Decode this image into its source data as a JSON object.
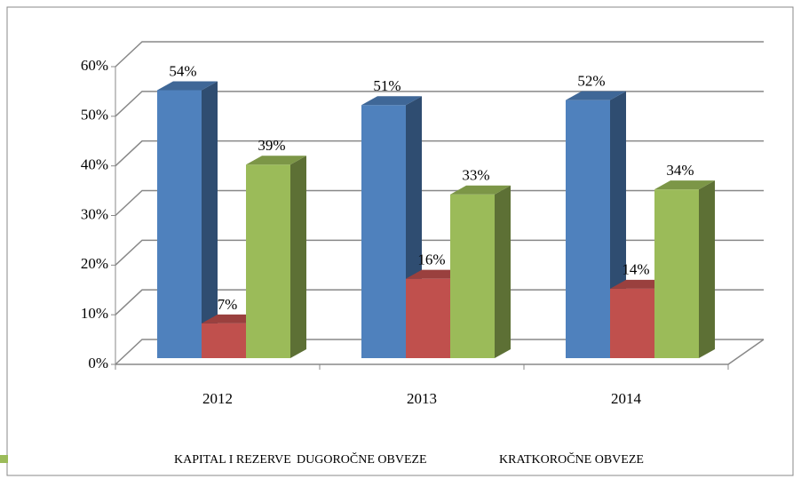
{
  "chart_data": {
    "type": "bar3d",
    "categories": [
      "2012",
      "2013",
      "2014"
    ],
    "series": [
      {
        "name": "KAPITAL I REZERVE",
        "color": "#4f81bd",
        "values": [
          54,
          51,
          52
        ],
        "value_labels": [
          "54%",
          "51%",
          "52%"
        ]
      },
      {
        "name": "DUGOROČNE OBVEZE",
        "color": "#c0504d",
        "values": [
          7,
          16,
          14
        ],
        "value_labels": [
          "7%",
          "16%",
          "14%"
        ]
      },
      {
        "name": "KRATKOROČNE OBVEZE",
        "color": "#9bbb59",
        "values": [
          39,
          33,
          34
        ],
        "value_labels": [
          "39%",
          "33%",
          "34%"
        ]
      }
    ],
    "ylim": [
      0,
      60
    ],
    "yticks": [
      {
        "value": 0,
        "label": "0%"
      },
      {
        "value": 10,
        "label": "10%"
      },
      {
        "value": 20,
        "label": "20%"
      },
      {
        "value": 30,
        "label": "30%"
      },
      {
        "value": 40,
        "label": "40%"
      },
      {
        "value": 50,
        "label": "50%"
      },
      {
        "value": 60,
        "label": "60%"
      }
    ],
    "grid": true,
    "legend": "bottom"
  }
}
